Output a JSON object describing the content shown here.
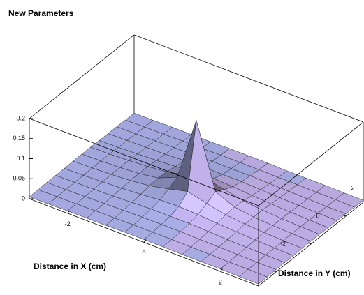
{
  "chart_data": {
    "type": "surface",
    "title": "New Parameters",
    "x_label": "Distance in X (cm)",
    "y_label": "Distance in Y (cm)",
    "x": [
      -3,
      -2.5,
      -2,
      -1.5,
      -1,
      -0.5,
      0,
      0.5,
      1,
      1.5,
      2,
      2.5,
      3
    ],
    "y": [
      -3,
      -2.5,
      -2,
      -1.5,
      -1,
      -0.5,
      0,
      0.5,
      1,
      1.5,
      2,
      2.5,
      3
    ],
    "z": [
      [
        0.005,
        0.005,
        0.006,
        0.006,
        0.006,
        0.007,
        0.007,
        0.007,
        0.006,
        0.006,
        0.006,
        0.005,
        0.005
      ],
      [
        0.005,
        0.006,
        0.006,
        0.007,
        0.007,
        0.008,
        0.008,
        0.008,
        0.007,
        0.007,
        0.006,
        0.006,
        0.005
      ],
      [
        0.006,
        0.006,
        0.007,
        0.008,
        0.009,
        0.01,
        0.01,
        0.01,
        0.009,
        0.008,
        0.007,
        0.006,
        0.006
      ],
      [
        0.006,
        0.007,
        0.008,
        0.009,
        0.011,
        0.013,
        0.013,
        0.013,
        0.011,
        0.009,
        0.008,
        0.007,
        0.006
      ],
      [
        0.006,
        0.007,
        0.009,
        0.011,
        0.014,
        0.018,
        0.02,
        0.018,
        0.014,
        0.011,
        0.009,
        0.007,
        0.006
      ],
      [
        0.007,
        0.008,
        0.01,
        0.013,
        0.018,
        0.028,
        0.04,
        0.028,
        0.018,
        0.013,
        0.01,
        0.008,
        0.007
      ],
      [
        0.007,
        0.008,
        0.01,
        0.013,
        0.02,
        0.04,
        0.2,
        0.04,
        0.02,
        0.013,
        0.01,
        0.008,
        0.007
      ],
      [
        0.007,
        0.008,
        0.01,
        0.013,
        0.018,
        0.028,
        0.04,
        0.028,
        0.018,
        0.013,
        0.01,
        0.008,
        0.007
      ],
      [
        0.006,
        0.007,
        0.009,
        0.011,
        0.014,
        0.018,
        0.02,
        0.018,
        0.014,
        0.011,
        0.009,
        0.007,
        0.006
      ],
      [
        0.006,
        0.007,
        0.008,
        0.009,
        0.011,
        0.013,
        0.013,
        0.013,
        0.011,
        0.009,
        0.008,
        0.007,
        0.006
      ],
      [
        0.006,
        0.006,
        0.007,
        0.008,
        0.009,
        0.01,
        0.01,
        0.01,
        0.009,
        0.008,
        0.007,
        0.006,
        0.006
      ],
      [
        0.005,
        0.006,
        0.006,
        0.007,
        0.007,
        0.008,
        0.008,
        0.008,
        0.007,
        0.007,
        0.006,
        0.006,
        0.005
      ],
      [
        0.005,
        0.005,
        0.006,
        0.006,
        0.006,
        0.007,
        0.007,
        0.007,
        0.006,
        0.006,
        0.006,
        0.005,
        0.005
      ]
    ],
    "xlim": [
      -3,
      3
    ],
    "ylim": [
      -3,
      3
    ],
    "zlim": [
      0,
      0.2
    ],
    "xticks": [
      -2,
      0,
      2
    ],
    "yticks": [
      -2,
      0,
      2
    ],
    "zticks": [
      0,
      0.05,
      0.1,
      0.15,
      0.2
    ],
    "color": "#a9aee6"
  }
}
